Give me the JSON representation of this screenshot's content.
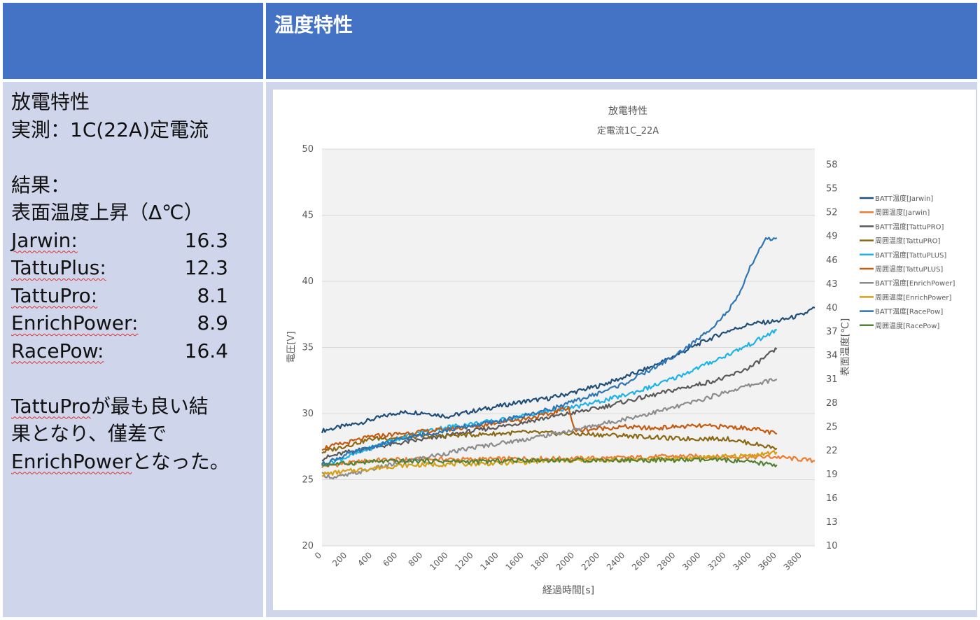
{
  "header": {
    "title": "温度特性"
  },
  "notes": {
    "heading": "放電特性",
    "measure": "実測：1C(22A)定電流",
    "result_label": "結果：",
    "rise_label": "表面温度上昇（Δ℃）",
    "rows": [
      {
        "name": "Jarwin:",
        "value": "16.3"
      },
      {
        "name": "TattuPlus:",
        "value": "12.3"
      },
      {
        "name": "TattuPro:",
        "value": "8.1"
      },
      {
        "name": "EnrichPower:",
        "value": "8.9"
      },
      {
        "name": "RacePow:",
        "value": "16.4"
      }
    ],
    "conclusion_1a": "TattuPro",
    "conclusion_1b": "が最も良い結",
    "conclusion_2": "果となり、僅差で",
    "conclusion_3a": "EnrichPower",
    "conclusion_3b": "となった。"
  },
  "chart_data": {
    "type": "line",
    "title": "放電特性",
    "subtitle": "定電流1C_22A",
    "xlabel": "経過時間[s]",
    "ylabel": "電圧[V]",
    "y2label": "表面温度[℃]",
    "xlim": [
      0,
      3900
    ],
    "ylim": [
      20,
      50
    ],
    "y2lim": [
      10,
      60
    ],
    "x_ticks": [
      0,
      200,
      400,
      600,
      800,
      1000,
      1200,
      1400,
      1600,
      1800,
      2000,
      2200,
      2400,
      2600,
      2800,
      3000,
      3200,
      3400,
      3600,
      3800
    ],
    "y_ticks": [
      20,
      25,
      30,
      35,
      40,
      45,
      50
    ],
    "y2_ticks": [
      10,
      13,
      16,
      19,
      22,
      25,
      28,
      31,
      34,
      37,
      40,
      43,
      46,
      49,
      52,
      55,
      58
    ],
    "grid": true,
    "legend_position": "right",
    "series": [
      {
        "name": "BATT温度[Jarwin]",
        "color": "#1f4e79",
        "axis": "y2",
        "points": [
          [
            0,
            24.5
          ],
          [
            300,
            25.5
          ],
          [
            600,
            26.8
          ],
          [
            800,
            26.8
          ],
          [
            1000,
            26.3
          ],
          [
            1200,
            27
          ],
          [
            1400,
            27.6
          ],
          [
            1600,
            28.2
          ],
          [
            1800,
            28.6
          ],
          [
            2000,
            29.4
          ],
          [
            2200,
            30.2
          ],
          [
            2400,
            31.3
          ],
          [
            2600,
            32.5
          ],
          [
            2800,
            34
          ],
          [
            3000,
            35.6
          ],
          [
            3200,
            37
          ],
          [
            3400,
            38
          ],
          [
            3600,
            38.3
          ],
          [
            3800,
            39.1
          ],
          [
            3900,
            40
          ]
        ]
      },
      {
        "name": "周囲温度[Jarwin]",
        "color": "#ed7d31",
        "axis": "y2",
        "points": [
          [
            0,
            20
          ],
          [
            400,
            20.8
          ],
          [
            800,
            20.9
          ],
          [
            1200,
            20.9
          ],
          [
            1600,
            21
          ],
          [
            2000,
            21
          ],
          [
            2400,
            21.1
          ],
          [
            2800,
            21.3
          ],
          [
            3200,
            21.2
          ],
          [
            3600,
            21.2
          ],
          [
            3900,
            20.7
          ]
        ]
      },
      {
        "name": "BATT温度[TattuPRO]",
        "color": "#595959",
        "axis": "y2",
        "points": [
          [
            0,
            21
          ],
          [
            200,
            21.8
          ],
          [
            400,
            22.4
          ],
          [
            600,
            22.9
          ],
          [
            800,
            23.4
          ],
          [
            1000,
            23.9
          ],
          [
            1200,
            24.5
          ],
          [
            1400,
            25
          ],
          [
            1600,
            25.6
          ],
          [
            1800,
            26.2
          ],
          [
            2000,
            26.8
          ],
          [
            2200,
            27.4
          ],
          [
            2400,
            28.2
          ],
          [
            2600,
            28.9
          ],
          [
            2800,
            29.7
          ],
          [
            3000,
            30.4
          ],
          [
            3200,
            31.2
          ],
          [
            3400,
            32.6
          ],
          [
            3600,
            34.8
          ]
        ]
      },
      {
        "name": "周囲温度[TattuPRO]",
        "color": "#8b6914",
        "axis": "y2",
        "points": [
          [
            0,
            21.8
          ],
          [
            400,
            23.5
          ],
          [
            800,
            23.8
          ],
          [
            1200,
            24
          ],
          [
            1600,
            24.3
          ],
          [
            2000,
            24.1
          ],
          [
            2400,
            23.9
          ],
          [
            2800,
            23.5
          ],
          [
            3200,
            23.5
          ],
          [
            3600,
            22.3
          ]
        ]
      },
      {
        "name": "BATT温度[TattuPLUS]",
        "color": "#1cb3e8",
        "axis": "y2",
        "points": [
          [
            0,
            20.2
          ],
          [
            200,
            21.2
          ],
          [
            400,
            22.4
          ],
          [
            600,
            23.5
          ],
          [
            800,
            24.4
          ],
          [
            1000,
            25
          ],
          [
            1200,
            25.4
          ],
          [
            1400,
            25.8
          ],
          [
            1600,
            26.4
          ],
          [
            1800,
            27
          ],
          [
            2000,
            27.5
          ],
          [
            2200,
            28.2
          ],
          [
            2400,
            29
          ],
          [
            2600,
            30
          ],
          [
            2800,
            31.2
          ],
          [
            3000,
            32.6
          ],
          [
            3200,
            34
          ],
          [
            3400,
            35.5
          ],
          [
            3600,
            37.2
          ]
        ]
      },
      {
        "name": "周囲温度[TattuPLUS]",
        "color": "#c55a11",
        "axis": "y2",
        "points": [
          [
            0,
            22.3
          ],
          [
            200,
            23
          ],
          [
            400,
            23.8
          ],
          [
            600,
            24.1
          ],
          [
            800,
            24.4
          ],
          [
            1000,
            24.7
          ],
          [
            1200,
            25
          ],
          [
            1400,
            25.6
          ],
          [
            1600,
            26
          ],
          [
            1800,
            26.6
          ],
          [
            1950,
            27.5
          ],
          [
            2000,
            24.5
          ],
          [
            2200,
            24.8
          ],
          [
            2400,
            25
          ],
          [
            2600,
            24.8
          ],
          [
            2800,
            25
          ],
          [
            3000,
            25.1
          ],
          [
            3200,
            25
          ],
          [
            3400,
            24.8
          ],
          [
            3600,
            24.1
          ]
        ]
      },
      {
        "name": "BATT温度[EnrichPower]",
        "color": "#8c8c8c",
        "axis": "y2",
        "points": [
          [
            0,
            19
          ],
          [
            100,
            18.6
          ],
          [
            200,
            18.9
          ],
          [
            400,
            19.7
          ],
          [
            600,
            20.4
          ],
          [
            800,
            21.1
          ],
          [
            1000,
            21.7
          ],
          [
            1200,
            22.4
          ],
          [
            1400,
            22.9
          ],
          [
            1600,
            23.4
          ],
          [
            1800,
            24
          ],
          [
            2000,
            24.6
          ],
          [
            2200,
            25.3
          ],
          [
            2400,
            26
          ],
          [
            2600,
            26.7
          ],
          [
            2800,
            27.5
          ],
          [
            3000,
            28.4
          ],
          [
            3200,
            29.4
          ],
          [
            3400,
            30.3
          ],
          [
            3600,
            31
          ]
        ]
      },
      {
        "name": "周囲温度[EnrichPower]",
        "color": "#d4a017",
        "axis": "y2",
        "points": [
          [
            0,
            19
          ],
          [
            300,
            19.6
          ],
          [
            600,
            20.1
          ],
          [
            1000,
            20.3
          ],
          [
            1400,
            20.4
          ],
          [
            1800,
            20.7
          ],
          [
            2200,
            20.8
          ],
          [
            2600,
            20.9
          ],
          [
            3000,
            21.1
          ],
          [
            3400,
            21.4
          ],
          [
            3600,
            21.8
          ]
        ]
      },
      {
        "name": "BATT温度[RacePow]",
        "color": "#2e75b6",
        "axis": "y2",
        "points": [
          [
            0,
            20.3
          ],
          [
            200,
            21.5
          ],
          [
            400,
            22.5
          ],
          [
            600,
            23.3
          ],
          [
            800,
            24
          ],
          [
            1000,
            24.6
          ],
          [
            1200,
            25.2
          ],
          [
            1400,
            25.7
          ],
          [
            1600,
            26.4
          ],
          [
            1800,
            27.2
          ],
          [
            2000,
            28.2
          ],
          [
            2200,
            29.3
          ],
          [
            2400,
            30.5
          ],
          [
            2600,
            32.2
          ],
          [
            2800,
            34
          ],
          [
            3000,
            36.3
          ],
          [
            3200,
            39.3
          ],
          [
            3300,
            41.5
          ],
          [
            3400,
            45.5
          ],
          [
            3500,
            48.5
          ],
          [
            3600,
            48.8
          ]
        ]
      },
      {
        "name": "周囲温度[RacePow]",
        "color": "#548235",
        "axis": "y2",
        "points": [
          [
            0,
            20.2
          ],
          [
            400,
            20.6
          ],
          [
            800,
            20.7
          ],
          [
            1200,
            20.6
          ],
          [
            1600,
            20.8
          ],
          [
            2000,
            20.8
          ],
          [
            2400,
            20.8
          ],
          [
            2800,
            20.8
          ],
          [
            3200,
            20.8
          ],
          [
            3400,
            20.5
          ],
          [
            3600,
            20.2
          ]
        ]
      }
    ]
  }
}
